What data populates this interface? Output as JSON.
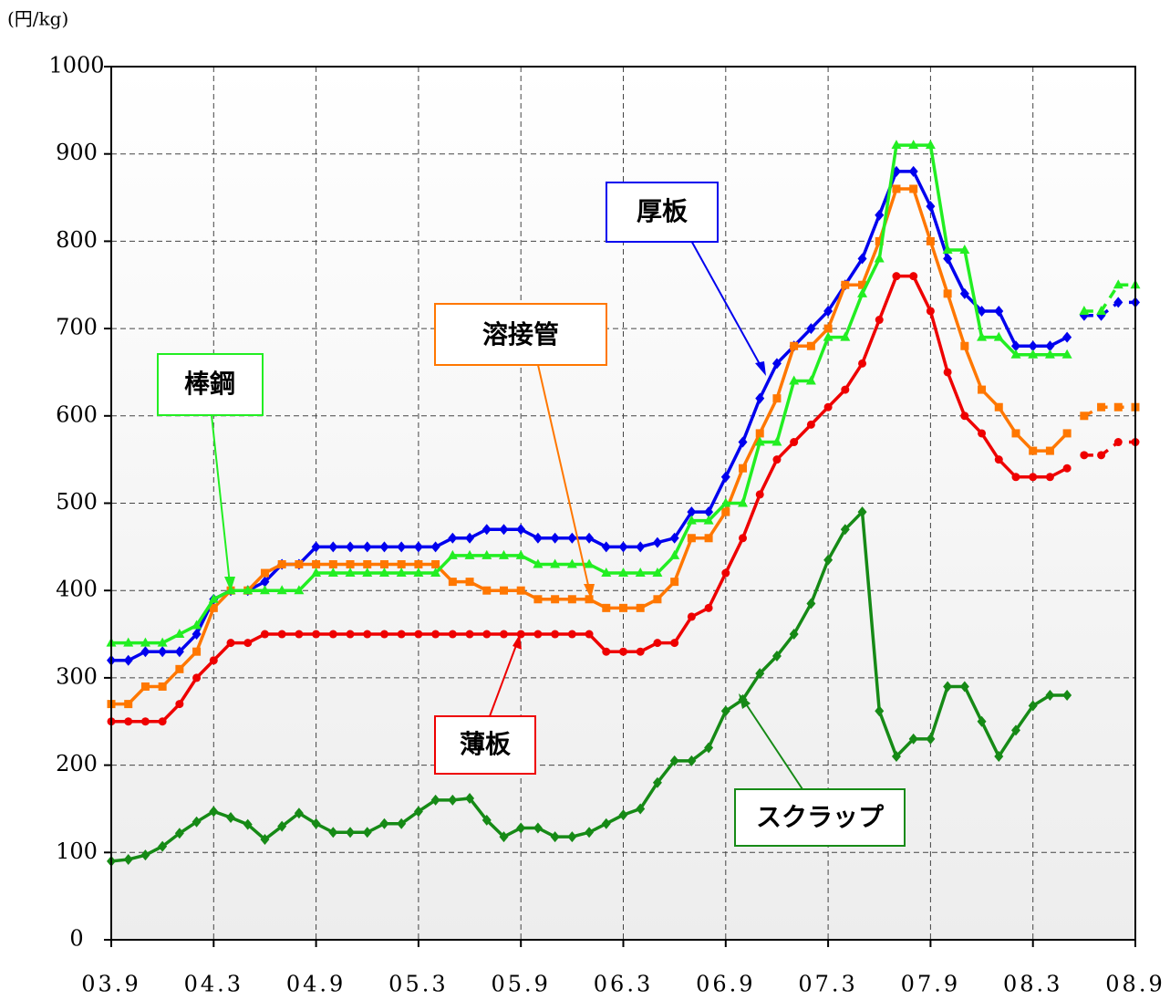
{
  "chart_data": {
    "type": "line",
    "ylabel": "(円/kg)",
    "categories": [
      "03.9",
      null,
      null,
      null,
      null,
      null,
      "04.3",
      null,
      null,
      null,
      null,
      null,
      "04.9",
      null,
      null,
      null,
      null,
      null,
      "05.3",
      null,
      null,
      null,
      null,
      null,
      "05.9",
      null,
      null,
      null,
      null,
      null,
      "06.3",
      null,
      null,
      null,
      null,
      null,
      "06.9",
      null,
      null,
      null,
      null,
      null,
      "07.3",
      null,
      null,
      null,
      null,
      null,
      "07.9",
      null,
      null,
      null,
      null,
      null,
      "08.3",
      null,
      null,
      null,
      null,
      null,
      "08.9"
    ],
    "ylim": [
      0,
      1000
    ],
    "yticks": [
      0,
      100,
      200,
      300,
      400,
      500,
      600,
      700,
      800,
      900,
      1000
    ],
    "grid": true,
    "dashed_from": 57,
    "series": [
      {
        "name": "厚板",
        "color": "#0000ee",
        "marker": "diamond",
        "values": [
          320,
          320,
          330,
          330,
          330,
          350,
          390,
          400,
          400,
          410,
          430,
          430,
          450,
          450,
          450,
          450,
          450,
          450,
          450,
          450,
          460,
          460,
          470,
          470,
          470,
          460,
          460,
          460,
          460,
          450,
          450,
          450,
          455,
          460,
          490,
          490,
          530,
          570,
          620,
          660,
          680,
          700,
          720,
          750,
          780,
          830,
          880,
          880,
          840,
          780,
          740,
          720,
          720,
          680,
          680,
          680,
          690,
          715,
          715,
          730,
          730
        ]
      },
      {
        "name": "溶接管",
        "color": "#ff7700",
        "marker": "square",
        "values": [
          270,
          270,
          290,
          290,
          310,
          330,
          380,
          400,
          400,
          420,
          430,
          430,
          430,
          430,
          430,
          430,
          430,
          430,
          430,
          430,
          410,
          410,
          400,
          400,
          400,
          390,
          390,
          390,
          390,
          380,
          380,
          380,
          390,
          410,
          460,
          460,
          490,
          540,
          580,
          620,
          680,
          680,
          700,
          750,
          750,
          800,
          860,
          860,
          800,
          740,
          680,
          630,
          610,
          580,
          560,
          560,
          580,
          600,
          610,
          610,
          610
        ]
      },
      {
        "name": "棒鋼",
        "color": "#22ee22",
        "marker": "triangle",
        "values": [
          340,
          340,
          340,
          340,
          350,
          360,
          390,
          400,
          400,
          400,
          400,
          400,
          420,
          420,
          420,
          420,
          420,
          420,
          420,
          420,
          440,
          440,
          440,
          440,
          440,
          430,
          430,
          430,
          430,
          420,
          420,
          420,
          420,
          440,
          480,
          480,
          500,
          500,
          570,
          570,
          640,
          640,
          690,
          690,
          740,
          780,
          910,
          910,
          910,
          790,
          790,
          690,
          690,
          670,
          670,
          670,
          670,
          720,
          720,
          750,
          750
        ]
      },
      {
        "name": "薄板",
        "color": "#ee0000",
        "marker": "circle",
        "values": [
          250,
          250,
          250,
          250,
          270,
          300,
          320,
          340,
          340,
          350,
          350,
          350,
          350,
          350,
          350,
          350,
          350,
          350,
          350,
          350,
          350,
          350,
          350,
          350,
          350,
          350,
          350,
          350,
          350,
          330,
          330,
          330,
          340,
          340,
          370,
          380,
          420,
          460,
          510,
          550,
          570,
          590,
          610,
          630,
          660,
          710,
          760,
          760,
          720,
          650,
          600,
          580,
          550,
          530,
          530,
          530,
          540,
          555,
          555,
          570,
          570
        ]
      },
      {
        "name": "スクラップ",
        "color": "#168a16",
        "marker": "diamond",
        "values": [
          90,
          92,
          97,
          107,
          122,
          135,
          147,
          140,
          132,
          115,
          130,
          145,
          133,
          123,
          123,
          123,
          133,
          133,
          147,
          160,
          160,
          162,
          137,
          118,
          128,
          128,
          118,
          118,
          123,
          133,
          143,
          150,
          180,
          205,
          205,
          220,
          262,
          275,
          305,
          325,
          350,
          385,
          435,
          470,
          490,
          262,
          210,
          230,
          230,
          290,
          290,
          250,
          210,
          240,
          268,
          280,
          280,
          null,
          null,
          null,
          null
        ]
      }
    ]
  }
}
